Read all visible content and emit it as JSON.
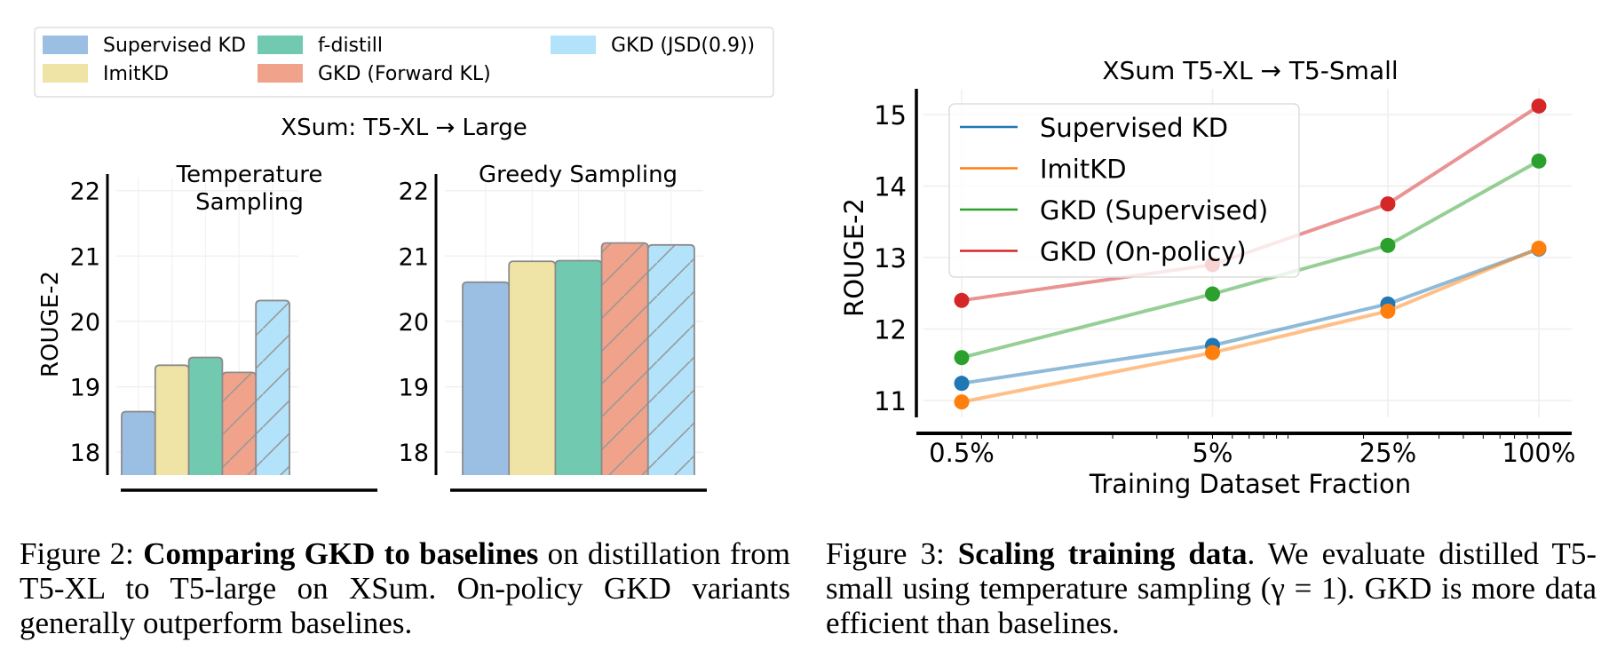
{
  "chart_data": [
    {
      "type": "bar",
      "title": "XSum: T5-XL → Large",
      "ylabel": "ROUGE-2",
      "ylim": [
        17.65,
        22.2
      ],
      "yticks": [
        18,
        19,
        20,
        21,
        22
      ],
      "grid": true,
      "legend": {
        "placement": "top-left",
        "entries": [
          {
            "name": "Supervised KD",
            "color": "#9bbfe3",
            "hatch": false
          },
          {
            "name": "ImitKD",
            "color": "#f0e3a6",
            "hatch": false
          },
          {
            "name": "f-distill",
            "color": "#71c9af",
            "hatch": false
          },
          {
            "name": "GKD (Forward KL)",
            "color": "#f0a38a",
            "hatch": true
          },
          {
            "name": "GKD (JSD(0.9))",
            "color": "#b3e2fb",
            "hatch": true
          }
        ]
      },
      "panels": [
        {
          "title_lines": [
            "Temperature",
            "Sampling"
          ],
          "categories": [
            "Supervised KD",
            "ImitKD",
            "f-distill",
            "GKD (Forward KL)",
            "GKD (JSD(0.9))"
          ],
          "values": [
            18.62,
            19.33,
            19.45,
            19.22,
            20.32
          ]
        },
        {
          "title_lines": [
            "Greedy Sampling"
          ],
          "categories": [
            "Supervised KD",
            "ImitKD",
            "f-distill",
            "GKD (Forward KL)",
            "GKD (JSD(0.9))"
          ],
          "values": [
            20.6,
            20.92,
            20.93,
            21.2,
            21.17
          ]
        }
      ]
    },
    {
      "type": "line",
      "title": "XSum T5-XL → T5-Small",
      "xlabel": "Training Dataset Fraction",
      "ylabel": "ROUGE-2",
      "xscale": "log",
      "x": [
        0.5,
        5,
        25,
        100
      ],
      "xtick_labels": [
        "0.5%",
        "5%",
        "25%",
        "100%"
      ],
      "ylim": [
        10.75,
        15.3
      ],
      "yticks": [
        11,
        12,
        13,
        14,
        15
      ],
      "grid": true,
      "legend_placement": "top-left",
      "series": [
        {
          "name": "Supervised KD",
          "color": "#1f77b4",
          "values": [
            11.24,
            11.77,
            12.35,
            13.12
          ]
        },
        {
          "name": "ImitKD",
          "color": "#ff7f0e",
          "values": [
            10.98,
            11.67,
            12.25,
            13.13
          ]
        },
        {
          "name": "GKD (Supervised)",
          "color": "#2ca02c",
          "values": [
            11.6,
            12.49,
            13.17,
            14.35
          ]
        },
        {
          "name": "GKD (On-policy)",
          "color": "#d62728",
          "values": [
            12.4,
            12.9,
            13.75,
            15.12
          ]
        }
      ]
    }
  ],
  "captions": {
    "fig2": {
      "prefix": "Figure 2: ",
      "bold": "Comparing GKD to baselines",
      "rest": " on distillation from T5-XL to T5-large on XSum.  On-policy GKD variants generally outperform baselines."
    },
    "fig3": {
      "prefix": "Figure 3: ",
      "bold": "Scaling training data",
      "rest": ". We evaluate distilled T5-small using temperature sampling (γ = 1). GKD is more data efficient than baselines."
    }
  }
}
